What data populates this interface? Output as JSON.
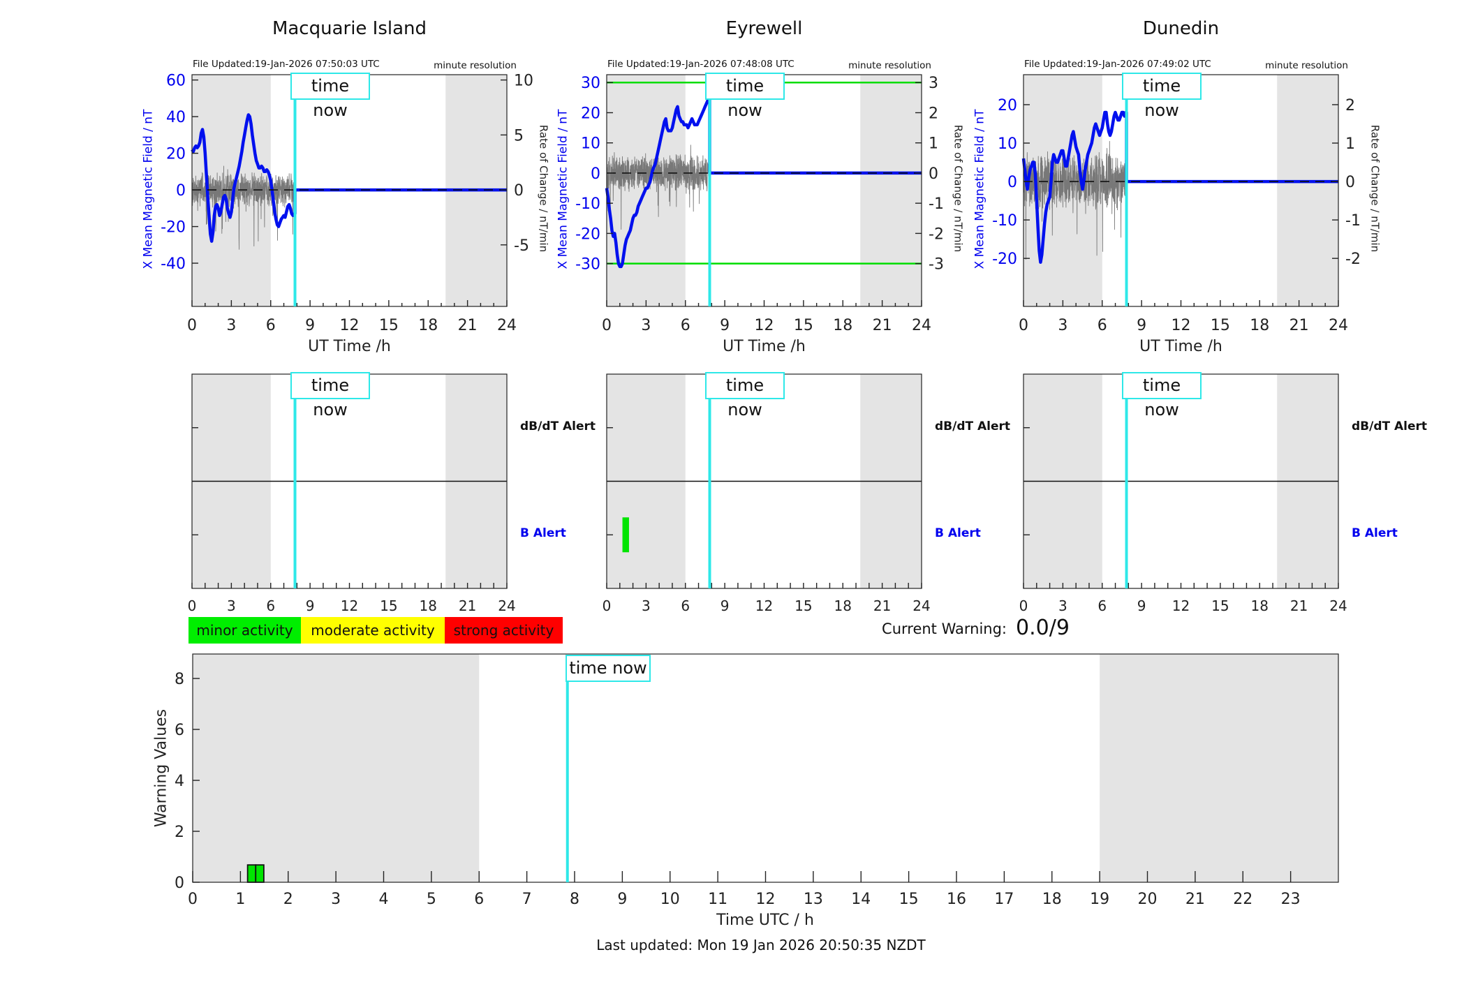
{
  "labels": {
    "time_now": "time now",
    "ut_time": "UT Time /h",
    "minute_resolution": "minute resolution",
    "left_axis_label": "X Mean Magnetic Field / nT",
    "right_axis_label": "Rate of Change / nT/min",
    "dbdt_alert": "dB/dT Alert",
    "b_alert": "B Alert",
    "current_warning_label": "Current Warning:",
    "warning_values": "Warning Values",
    "time_utc": "Time UTC / h",
    "last_updated": "Last updated: Mon 19 Jan 2026 20:50:35 NZDT"
  },
  "legend": {
    "minor": {
      "label": "minor activity",
      "color": "#00ee00"
    },
    "moderate": {
      "label": "moderate activity",
      "color": "#ffff00"
    },
    "strong": {
      "label": "strong activity",
      "color": "#ff0000"
    }
  },
  "colors": {
    "field_line": "#0010ee",
    "rate_line": "#787878",
    "time_now": "#2ee8e8",
    "shade": "#e4e4e4",
    "threshold": "#00dd00",
    "event_green": "#00e400",
    "axis": "#222222",
    "dashed_zero": "#111111"
  },
  "chart_data": {
    "type": "line",
    "time_now_hour": 7.85,
    "xlim": [
      0,
      24
    ],
    "top_xticks": [
      0,
      3,
      6,
      9,
      12,
      15,
      18,
      21,
      24
    ],
    "shade_bands_top": [
      [
        0,
        6
      ],
      [
        19.33,
        24
      ]
    ],
    "shade_bands_bottom": [
      [
        0,
        6
      ],
      [
        19,
        24
      ]
    ],
    "series_step_hours": 0.1,
    "stations": [
      {
        "title": "Macquarie Island",
        "file_updated": "File Updated:19-Jan-2026 07:50:03 UTC",
        "ylim": [
          -63.6,
          62.9
        ],
        "yticks_left": [
          -40,
          -20,
          0,
          20,
          40,
          60
        ],
        "yticks_right": [
          -5,
          0,
          5,
          10
        ],
        "right_to_left_factor": 6,
        "thresholds": [],
        "noise": {
          "amp": 10,
          "spike": 26,
          "spike_prob": 0.03,
          "seed": 7
        },
        "field_values": [
          22,
          21,
          23,
          24,
          23,
          24,
          26,
          31,
          33,
          29,
          20,
          8,
          -4,
          -14,
          -24,
          -28,
          -23,
          -14,
          -9,
          -8,
          -10,
          -14,
          -12,
          -8,
          -4,
          -3,
          -5,
          -10,
          -13,
          -15,
          -12,
          -5,
          1,
          4,
          7,
          10,
          13,
          17,
          21,
          26,
          30,
          34,
          38,
          41,
          40,
          36,
          30,
          25,
          20,
          16,
          14,
          12,
          12,
          13,
          12,
          10,
          10,
          11,
          10,
          8,
          5,
          0,
          -6,
          -12,
          -16,
          -19,
          -20,
          -18,
          -16,
          -15,
          -14,
          -15,
          -12,
          -9,
          -8,
          -10,
          -13,
          -14,
          -13
        ]
      },
      {
        "title": "Eyrewell",
        "file_updated": "File Updated:19-Jan-2026 07:48:08 UTC",
        "ylim": [
          -44.2,
          32.6
        ],
        "yticks_left": [
          -30,
          -20,
          -10,
          0,
          10,
          20,
          30
        ],
        "yticks_right": [
          -3,
          -2,
          -1,
          0,
          1,
          2,
          3
        ],
        "right_to_left_factor": 10,
        "thresholds": [
          30,
          -30
        ],
        "noise": {
          "amp": 7,
          "spike": 14,
          "spike_prob": 0.02,
          "seed": 11
        },
        "field_values": [
          -5,
          -8,
          -12,
          -15,
          -19,
          -21,
          -20,
          -23,
          -27,
          -30,
          -31,
          -31,
          -30,
          -27,
          -24,
          -22,
          -21,
          -20,
          -19,
          -17,
          -15,
          -14,
          -14,
          -13,
          -11,
          -10,
          -9,
          -8,
          -7,
          -6,
          -5,
          -5,
          -4,
          -3,
          -1,
          1,
          2,
          3,
          5,
          7,
          9,
          11,
          13,
          15,
          17,
          18,
          15,
          14,
          14,
          14,
          15,
          17,
          19,
          21,
          22,
          19,
          18,
          17,
          17,
          16,
          16,
          16,
          15,
          16,
          17,
          18,
          17,
          16,
          16,
          16,
          17,
          18,
          19,
          20,
          21,
          22,
          23,
          24,
          25
        ]
      },
      {
        "title": "Dunedin",
        "file_updated": "File Updated:19-Jan-2026 07:49:02 UTC",
        "ylim": [
          -32.5,
          27.8
        ],
        "yticks_left": [
          -20,
          -10,
          0,
          10,
          20
        ],
        "yticks_right": [
          -2,
          -1,
          0,
          1,
          2
        ],
        "right_to_left_factor": 10,
        "thresholds": [],
        "noise": {
          "amp": 8,
          "spike": 17,
          "spike_prob": 0.025,
          "seed": 23
        },
        "field_values": [
          6,
          3,
          0,
          -2,
          1,
          3,
          4,
          5,
          5,
          2,
          -5,
          -12,
          -18,
          -21,
          -19,
          -15,
          -11,
          -8,
          -6,
          -5,
          -4,
          0,
          5,
          7,
          6,
          5,
          5,
          6,
          7,
          8,
          8,
          6,
          4,
          4,
          6,
          8,
          10,
          12,
          13,
          11,
          9,
          8,
          7,
          3,
          0,
          -2,
          0,
          3,
          5,
          7,
          8,
          9,
          10,
          12,
          14,
          15,
          14,
          13,
          12,
          13,
          14,
          16,
          18,
          18,
          15,
          13,
          12,
          13,
          15,
          17,
          18,
          17,
          16,
          16,
          17,
          18,
          18,
          17,
          18
        ]
      }
    ],
    "alert_panels": [
      {
        "events": []
      },
      {
        "events": [
          {
            "type": "B",
            "start_hour": 1.2,
            "end_hour": 1.7
          }
        ]
      },
      {
        "events": []
      }
    ],
    "warning_chart": {
      "type": "bar",
      "current_warning": "0.0/9",
      "ylim": [
        0,
        8.96
      ],
      "yticks": [
        0,
        2,
        4,
        6,
        8
      ],
      "xticks": [
        0,
        1,
        2,
        3,
        4,
        5,
        6,
        7,
        8,
        9,
        10,
        11,
        12,
        13,
        14,
        15,
        16,
        17,
        18,
        19,
        20,
        21,
        22,
        23
      ],
      "bars": [
        {
          "start_hour": 1.15,
          "end_hour": 1.32,
          "value": 0.68
        },
        {
          "start_hour": 1.32,
          "end_hour": 1.49,
          "value": 0.68
        }
      ]
    }
  }
}
